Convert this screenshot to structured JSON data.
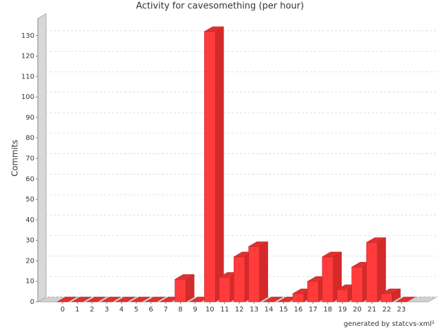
{
  "chart_data": {
    "type": "bar3d",
    "title": "Activity for cavesomething (per hour)",
    "y_label": "Commits",
    "footer": "generated by statcvs-xml²",
    "categories": [
      "0",
      "1",
      "2",
      "3",
      "4",
      "5",
      "6",
      "7",
      "8",
      "9",
      "10",
      "11",
      "12",
      "13",
      "14",
      "15",
      "16",
      "17",
      "18",
      "19",
      "20",
      "21",
      "22",
      "23"
    ],
    "values": [
      0,
      0,
      0,
      0,
      0,
      0,
      0,
      0,
      11,
      0,
      132,
      12,
      22,
      27,
      0,
      0,
      4,
      10,
      22,
      6,
      17,
      29,
      4,
      0
    ],
    "color": "#ff3b3b",
    "ylim": [
      0,
      140
    ],
    "yticks": [
      0,
      10,
      20,
      30,
      40,
      50,
      60,
      70,
      80,
      90,
      100,
      110,
      120,
      130
    ],
    "grid": true
  }
}
